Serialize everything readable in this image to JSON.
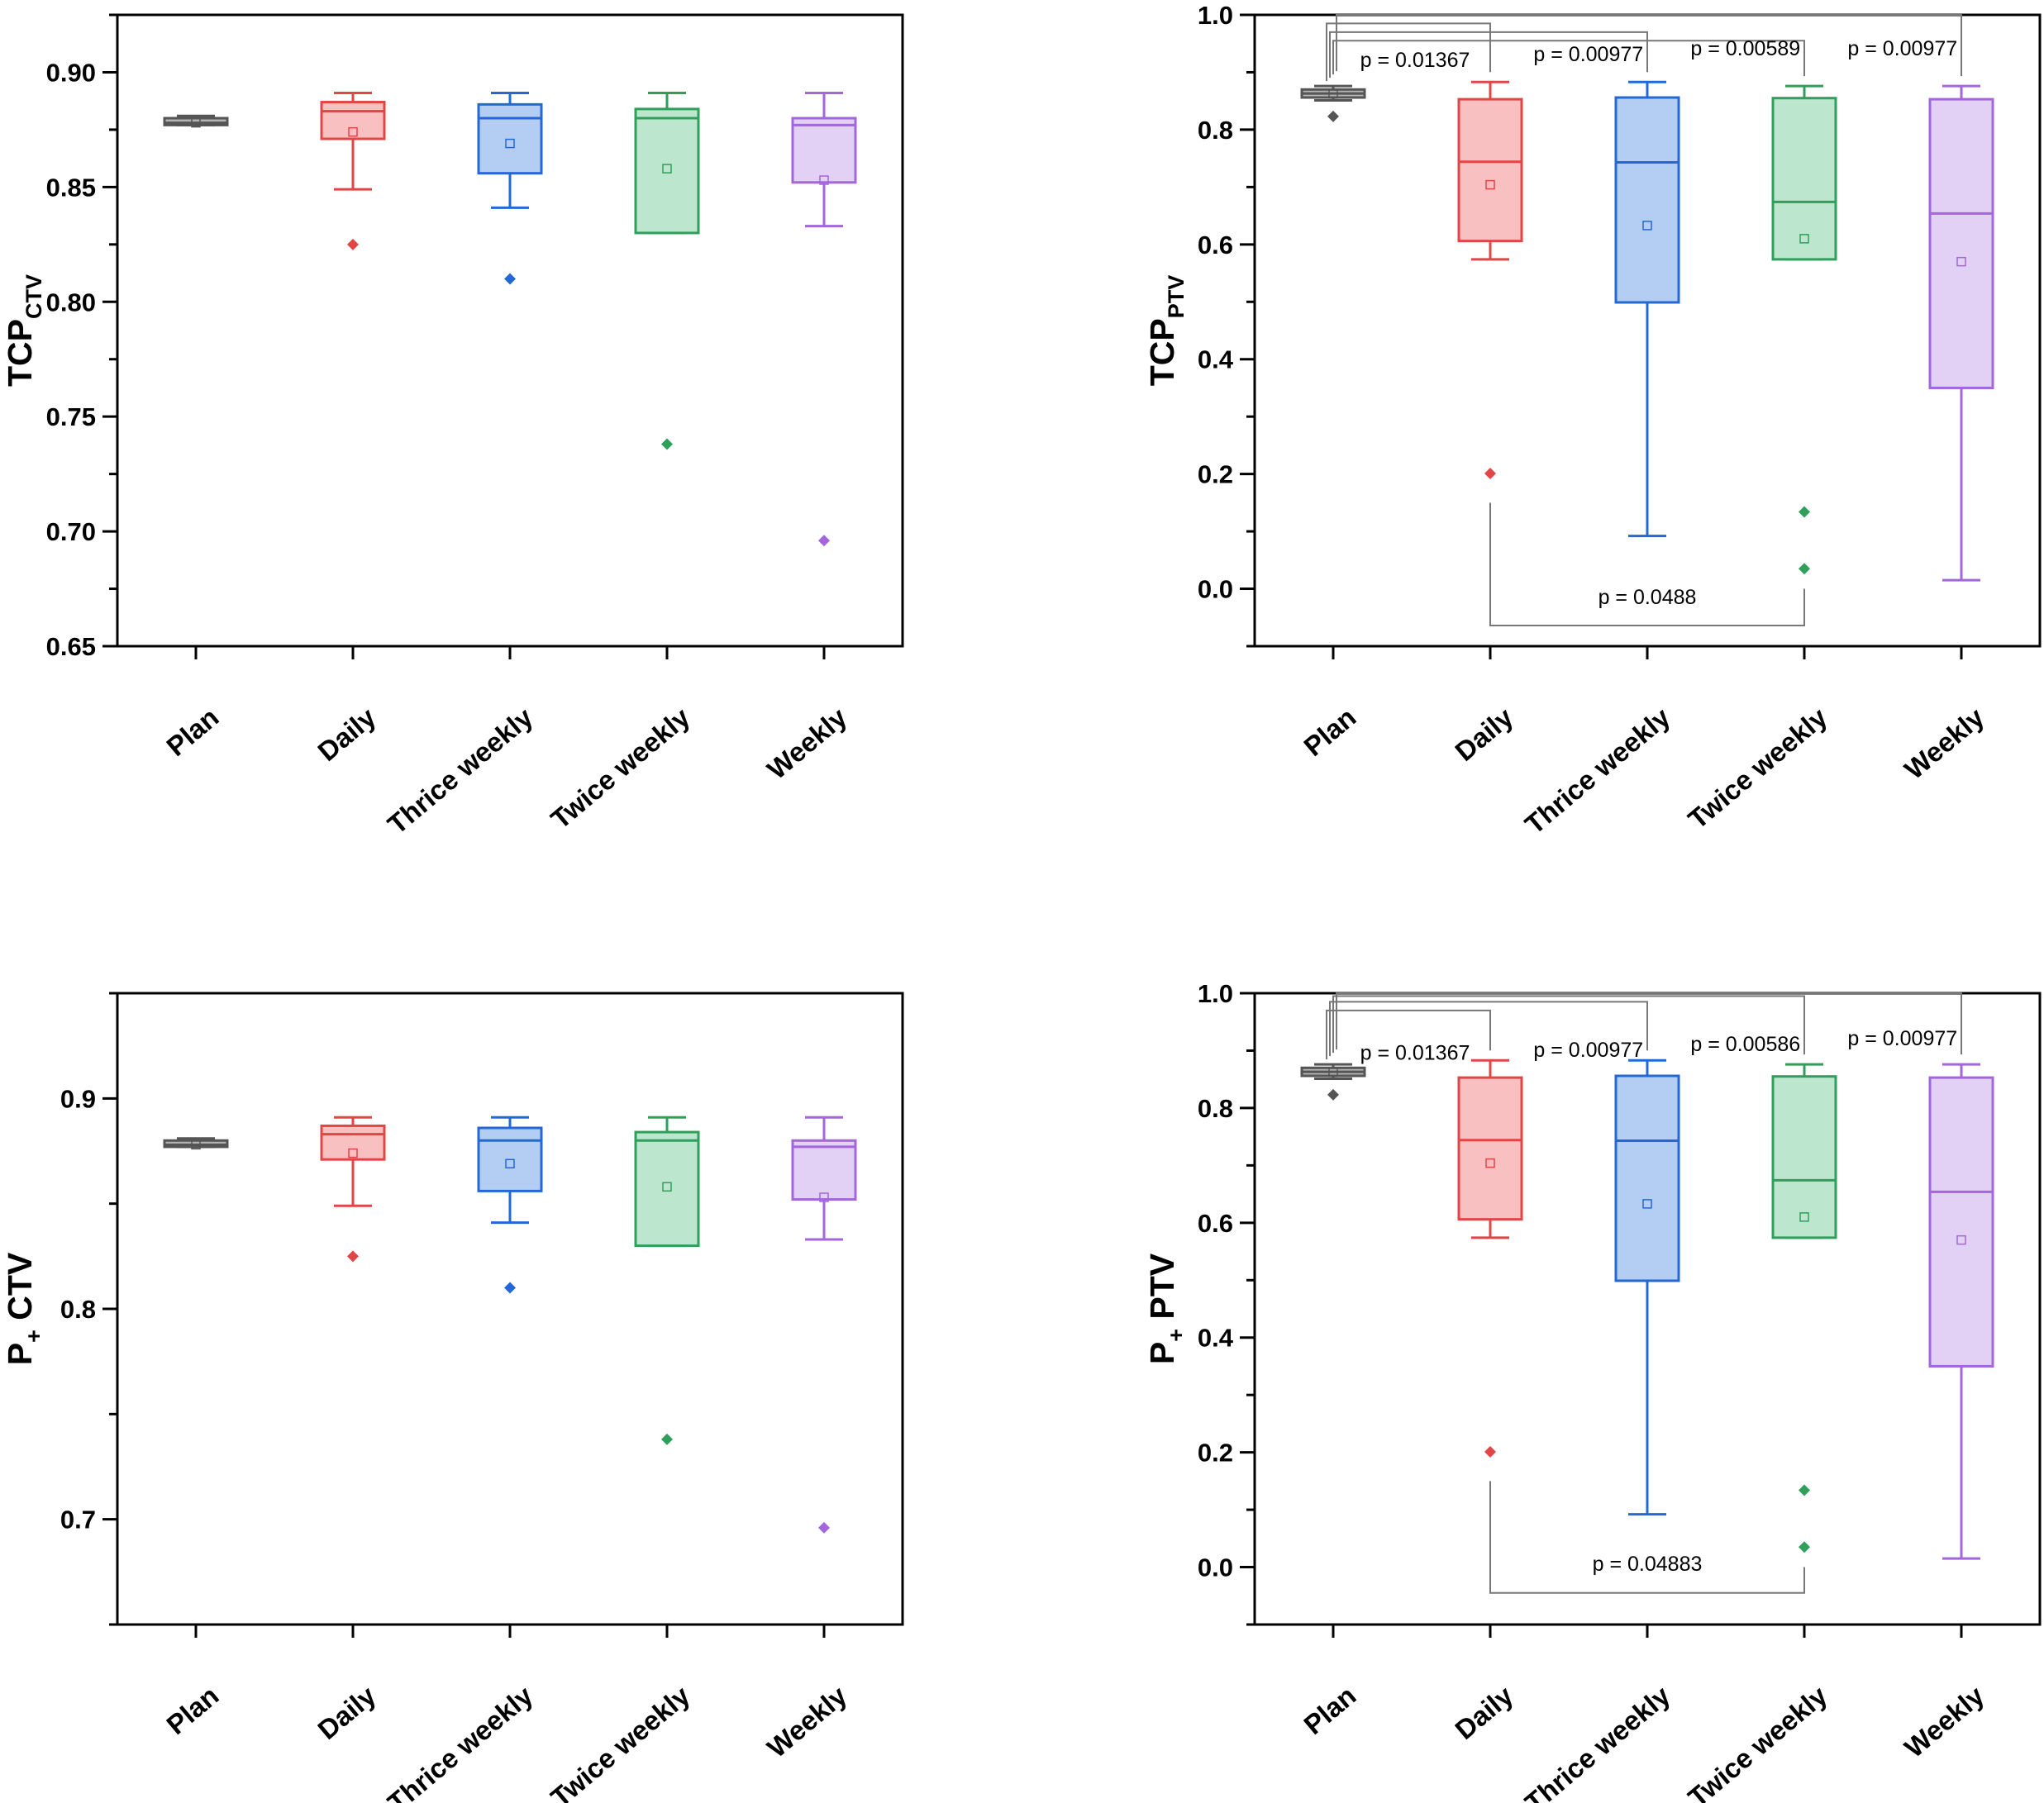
{
  "chart_data": [
    {
      "id": "tcp-ctv",
      "type": "box",
      "title": "",
      "ylabel": {
        "main": "TCP",
        "sub": "CTV",
        "sub_style": "subscript"
      },
      "xlabel": "",
      "categories": [
        "Plan",
        "Daily",
        "Thrice weekly",
        "Twice weekly",
        "Weekly"
      ],
      "ylim": [
        0.65,
        0.925
      ],
      "y_ticks": [
        0.65,
        0.7,
        0.75,
        0.8,
        0.85,
        0.9
      ],
      "y_tick_labels": [
        "0.65",
        "0.70",
        "0.75",
        "0.80",
        "0.85",
        "0.90"
      ],
      "y_minor_step": 0.025,
      "boxes": [
        {
          "category": "Plan",
          "color": "#555555",
          "fill": "#b4b4b4",
          "whisker_low": 0.877,
          "q1": 0.877,
          "median": 0.878,
          "q3": 0.88,
          "whisker_high": 0.881,
          "mean": 0.878,
          "outliers": []
        },
        {
          "category": "Daily",
          "color": "#e04646",
          "fill": "#f8c0c0",
          "whisker_low": 0.849,
          "q1": 0.871,
          "median": 0.883,
          "q3": 0.887,
          "whisker_high": 0.891,
          "mean": 0.874,
          "outliers": [
            0.825
          ]
        },
        {
          "category": "Thrice weekly",
          "color": "#2468d8",
          "fill": "#b3cef2",
          "whisker_low": 0.841,
          "q1": 0.856,
          "median": 0.88,
          "q3": 0.886,
          "whisker_high": 0.891,
          "mean": 0.869,
          "outliers": [
            0.81
          ]
        },
        {
          "category": "Twice weekly",
          "color": "#2ea05a",
          "fill": "#bde6cf",
          "whisker_low": 0.83,
          "q1": 0.83,
          "median": 0.88,
          "q3": 0.884,
          "whisker_high": 0.891,
          "mean": 0.858,
          "outliers": [
            0.738
          ]
        },
        {
          "category": "Weekly",
          "color": "#a366dc",
          "fill": "#e3d0f5",
          "whisker_low": 0.833,
          "q1": 0.852,
          "median": 0.877,
          "q3": 0.88,
          "whisker_high": 0.891,
          "mean": 0.853,
          "outliers": [
            0.696
          ]
        }
      ],
      "annotations": []
    },
    {
      "id": "tcp-ptv",
      "type": "box",
      "title": "",
      "ylabel": {
        "main": "TCP",
        "sub": "PTV",
        "sub_style": "subscript"
      },
      "xlabel": "",
      "categories": [
        "Plan",
        "Daily",
        "Thrice weekly",
        "Twice weekly",
        "Weekly"
      ],
      "ylim": [
        -0.1,
        1.0
      ],
      "y_ticks": [
        0.0,
        0.2,
        0.4,
        0.6,
        0.8,
        1.0
      ],
      "y_tick_labels": [
        "0.0",
        "0.2",
        "0.4",
        "0.6",
        "0.8",
        "1.0"
      ],
      "y_minor_step": 0.1,
      "boxes": [
        {
          "category": "Plan",
          "color": "#555555",
          "fill": "#b4b4b4",
          "whisker_low": 0.851,
          "q1": 0.856,
          "median": 0.863,
          "q3": 0.87,
          "whisker_high": 0.876,
          "mean": 0.862,
          "outliers": [
            0.823
          ]
        },
        {
          "category": "Daily",
          "color": "#e04646",
          "fill": "#f8c0c0",
          "whisker_low": 0.574,
          "q1": 0.606,
          "median": 0.744,
          "q3": 0.853,
          "whisker_high": 0.883,
          "mean": 0.704,
          "outliers": [
            0.201
          ]
        },
        {
          "category": "Thrice weekly",
          "color": "#2468d8",
          "fill": "#b3cef2",
          "whisker_low": 0.092,
          "q1": 0.499,
          "median": 0.743,
          "q3": 0.856,
          "whisker_high": 0.883,
          "mean": 0.633,
          "outliers": []
        },
        {
          "category": "Twice weekly",
          "color": "#2ea05a",
          "fill": "#bde6cf",
          "whisker_low": 0.574,
          "q1": 0.574,
          "median": 0.674,
          "q3": 0.855,
          "whisker_high": 0.876,
          "mean": 0.61,
          "outliers": [
            0.134,
            0.035
          ]
        },
        {
          "category": "Weekly",
          "color": "#a366dc",
          "fill": "#e3d0f5",
          "whisker_low": 0.015,
          "q1": 0.35,
          "median": 0.654,
          "q3": 0.853,
          "whisker_high": 0.876,
          "mean": 0.57,
          "outliers": []
        }
      ],
      "annotations": [
        {
          "text": "p = 0.01367",
          "from": "Plan",
          "to": "Daily",
          "bar_y": 0.985,
          "label_y": 0.915,
          "position": "above"
        },
        {
          "text": "p = 0.00977",
          "from": "Plan",
          "to": "Thrice weekly",
          "bar_y": 0.97,
          "label_y": 0.925,
          "position": "above"
        },
        {
          "text": "p = 0.00589",
          "from": "Plan",
          "to": "Twice weekly",
          "bar_y": 0.955,
          "label_y": 0.935,
          "position": "above"
        },
        {
          "text": "p = 0.00977",
          "from": "Plan",
          "to": "Weekly",
          "bar_y": 1.0,
          "label_y": 0.935,
          "position": "above"
        },
        {
          "text": "p = 0.0488",
          "from": "Daily",
          "to": "Twice weekly",
          "bar_y": -0.064,
          "label_y": -0.015,
          "position": "below"
        }
      ]
    },
    {
      "id": "p-plus-ctv",
      "type": "box",
      "title": "",
      "ylabel": {
        "main": "P",
        "sub": "+",
        "tail": " CTV",
        "sub_style": "subscript"
      },
      "xlabel": "",
      "categories": [
        "Plan",
        "Daily",
        "Thrice weekly",
        "Twice weekly",
        "Weekly"
      ],
      "ylim": [
        0.65,
        0.95
      ],
      "y_ticks": [
        0.7,
        0.8,
        0.9
      ],
      "y_tick_labels": [
        "0.7",
        "0.8",
        "0.9"
      ],
      "y_minor_step": 0.05,
      "boxes": [
        {
          "category": "Plan",
          "color": "#555555",
          "fill": "#b4b4b4",
          "whisker_low": 0.877,
          "q1": 0.877,
          "median": 0.878,
          "q3": 0.88,
          "whisker_high": 0.881,
          "mean": 0.878,
          "outliers": []
        },
        {
          "category": "Daily",
          "color": "#e04646",
          "fill": "#f8c0c0",
          "whisker_low": 0.849,
          "q1": 0.871,
          "median": 0.883,
          "q3": 0.887,
          "whisker_high": 0.891,
          "mean": 0.874,
          "outliers": [
            0.825
          ]
        },
        {
          "category": "Thrice weekly",
          "color": "#2468d8",
          "fill": "#b3cef2",
          "whisker_low": 0.841,
          "q1": 0.856,
          "median": 0.88,
          "q3": 0.886,
          "whisker_high": 0.891,
          "mean": 0.869,
          "outliers": [
            0.81
          ]
        },
        {
          "category": "Twice weekly",
          "color": "#2ea05a",
          "fill": "#bde6cf",
          "whisker_low": 0.83,
          "q1": 0.83,
          "median": 0.88,
          "q3": 0.884,
          "whisker_high": 0.891,
          "mean": 0.858,
          "outliers": [
            0.738
          ]
        },
        {
          "category": "Weekly",
          "color": "#a366dc",
          "fill": "#e3d0f5",
          "whisker_low": 0.833,
          "q1": 0.852,
          "median": 0.877,
          "q3": 0.88,
          "whisker_high": 0.891,
          "mean": 0.853,
          "outliers": [
            0.696
          ]
        }
      ],
      "annotations": []
    },
    {
      "id": "p-plus-ptv",
      "type": "box",
      "title": "",
      "ylabel": {
        "main": "P",
        "sub": "+",
        "tail": " PTV",
        "sub_style": "subscript"
      },
      "xlabel": "",
      "categories": [
        "Plan",
        "Daily",
        "Thrice weekly",
        "Twice weekly",
        "Weekly"
      ],
      "ylim": [
        -0.1,
        1.0
      ],
      "y_ticks": [
        0.0,
        0.2,
        0.4,
        0.6,
        0.8,
        1.0
      ],
      "y_tick_labels": [
        "0.0",
        "0.2",
        "0.4",
        "0.6",
        "0.8",
        "1.0"
      ],
      "y_minor_step": 0.1,
      "boxes": [
        {
          "category": "Plan",
          "color": "#555555",
          "fill": "#b4b4b4",
          "whisker_low": 0.851,
          "q1": 0.856,
          "median": 0.863,
          "q3": 0.87,
          "whisker_high": 0.876,
          "mean": 0.862,
          "outliers": [
            0.823
          ]
        },
        {
          "category": "Daily",
          "color": "#e04646",
          "fill": "#f8c0c0",
          "whisker_low": 0.574,
          "q1": 0.606,
          "median": 0.744,
          "q3": 0.853,
          "whisker_high": 0.883,
          "mean": 0.704,
          "outliers": [
            0.201
          ]
        },
        {
          "category": "Thrice weekly",
          "color": "#2468d8",
          "fill": "#b3cef2",
          "whisker_low": 0.092,
          "q1": 0.499,
          "median": 0.743,
          "q3": 0.856,
          "whisker_high": 0.883,
          "mean": 0.633,
          "outliers": []
        },
        {
          "category": "Twice weekly",
          "color": "#2ea05a",
          "fill": "#bde6cf",
          "whisker_low": 0.574,
          "q1": 0.574,
          "median": 0.674,
          "q3": 0.855,
          "whisker_high": 0.876,
          "mean": 0.61,
          "outliers": [
            0.134,
            0.035
          ]
        },
        {
          "category": "Weekly",
          "color": "#a366dc",
          "fill": "#e3d0f5",
          "whisker_low": 0.015,
          "q1": 0.35,
          "median": 0.654,
          "q3": 0.853,
          "whisker_high": 0.876,
          "mean": 0.57,
          "outliers": []
        }
      ],
      "annotations": [
        {
          "text": "p = 0.01367",
          "from": "Plan",
          "to": "Daily",
          "bar_y": 0.97,
          "label_y": 0.89,
          "position": "above"
        },
        {
          "text": "p = 0.00977",
          "from": "Plan",
          "to": "Thrice weekly",
          "bar_y": 0.985,
          "label_y": 0.895,
          "position": "above"
        },
        {
          "text": "p = 0.00586",
          "from": "Plan",
          "to": "Twice weekly",
          "bar_y": 0.995,
          "label_y": 0.905,
          "position": "above"
        },
        {
          "text": "p = 0.00977",
          "from": "Plan",
          "to": "Weekly",
          "bar_y": 1.0,
          "label_y": 0.915,
          "position": "above"
        },
        {
          "text": "p = 0.04883",
          "from": "Daily",
          "to": "Twice weekly",
          "bar_y": -0.045,
          "label_y": 0.005,
          "position": "below"
        }
      ]
    }
  ]
}
